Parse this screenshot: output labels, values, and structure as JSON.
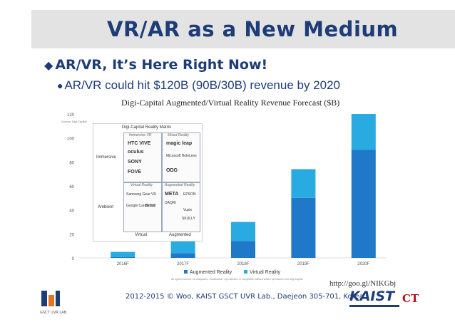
{
  "slide": {
    "title": "VR/AR as a New Medium",
    "bullet1": "AR/VR, It’s Here Right Now!",
    "bullet2": "AR/VR could hit $120B (90B/30B) revenue by 2020",
    "source_url": "http://goo.gl/NIKGbj",
    "footer": "2012-2015 © Woo, KAIST GSCT UVR Lab., Daejeon 305-701, Korea",
    "logo_left_text": "GSCT UVR LAB.",
    "logo_right_text": "KAIST",
    "logo_ct_text": "CT"
  },
  "chart_data": {
    "type": "bar",
    "stacked": true,
    "title": "Digi-Capital Augmented/Virtual Reality Revenue Forecast ($B)",
    "source_note": "Source: Digi-Capital",
    "categories": [
      "2016F",
      "2017F",
      "2018F",
      "2019F",
      "2020F"
    ],
    "series": [
      {
        "name": "Augmented Reality",
        "color": "#1f78c8",
        "values": [
          0.6,
          4,
          14,
          50,
          90
        ]
      },
      {
        "name": "Virtual Reality",
        "color": "#29abe2",
        "values": [
          4.4,
          10,
          16,
          24,
          30
        ]
      }
    ],
    "ylim": [
      0,
      120
    ],
    "yticks": [
      0,
      20,
      40,
      60,
      80,
      100,
      120
    ],
    "legend": "bottom",
    "grid": false,
    "footnote": "All rights reserved. No adaptation, modification, reproduction or compilation without written permission from Digi-Capital"
  },
  "matrix": {
    "title": "Digi-Capital Reality Matrix",
    "row_labels": [
      "Immersive",
      "Ambient"
    ],
    "col_labels": [
      "Virtual",
      "Augmented"
    ],
    "quadrants": {
      "immersive_vr": {
        "head": "Immersive VR",
        "items": [
          "HTC VIVE",
          "oculus",
          "SONY",
          "FOVE"
        ]
      },
      "mixed_reality": {
        "head": "Mixed Reality",
        "items": [
          "magic leap",
          "Microsoft HoloLens",
          "ODG"
        ]
      },
      "virtual_reality": {
        "head": "Virtual Reality",
        "items": [
          "Samsung Gear VR",
          "Google Cardboard",
          "ZEISS"
        ]
      },
      "augmented_reality": {
        "head": "Augmented Reality",
        "items": [
          "META",
          "EPSON",
          "DAQRI",
          "Vuzix",
          "SKULLY"
        ]
      }
    }
  }
}
